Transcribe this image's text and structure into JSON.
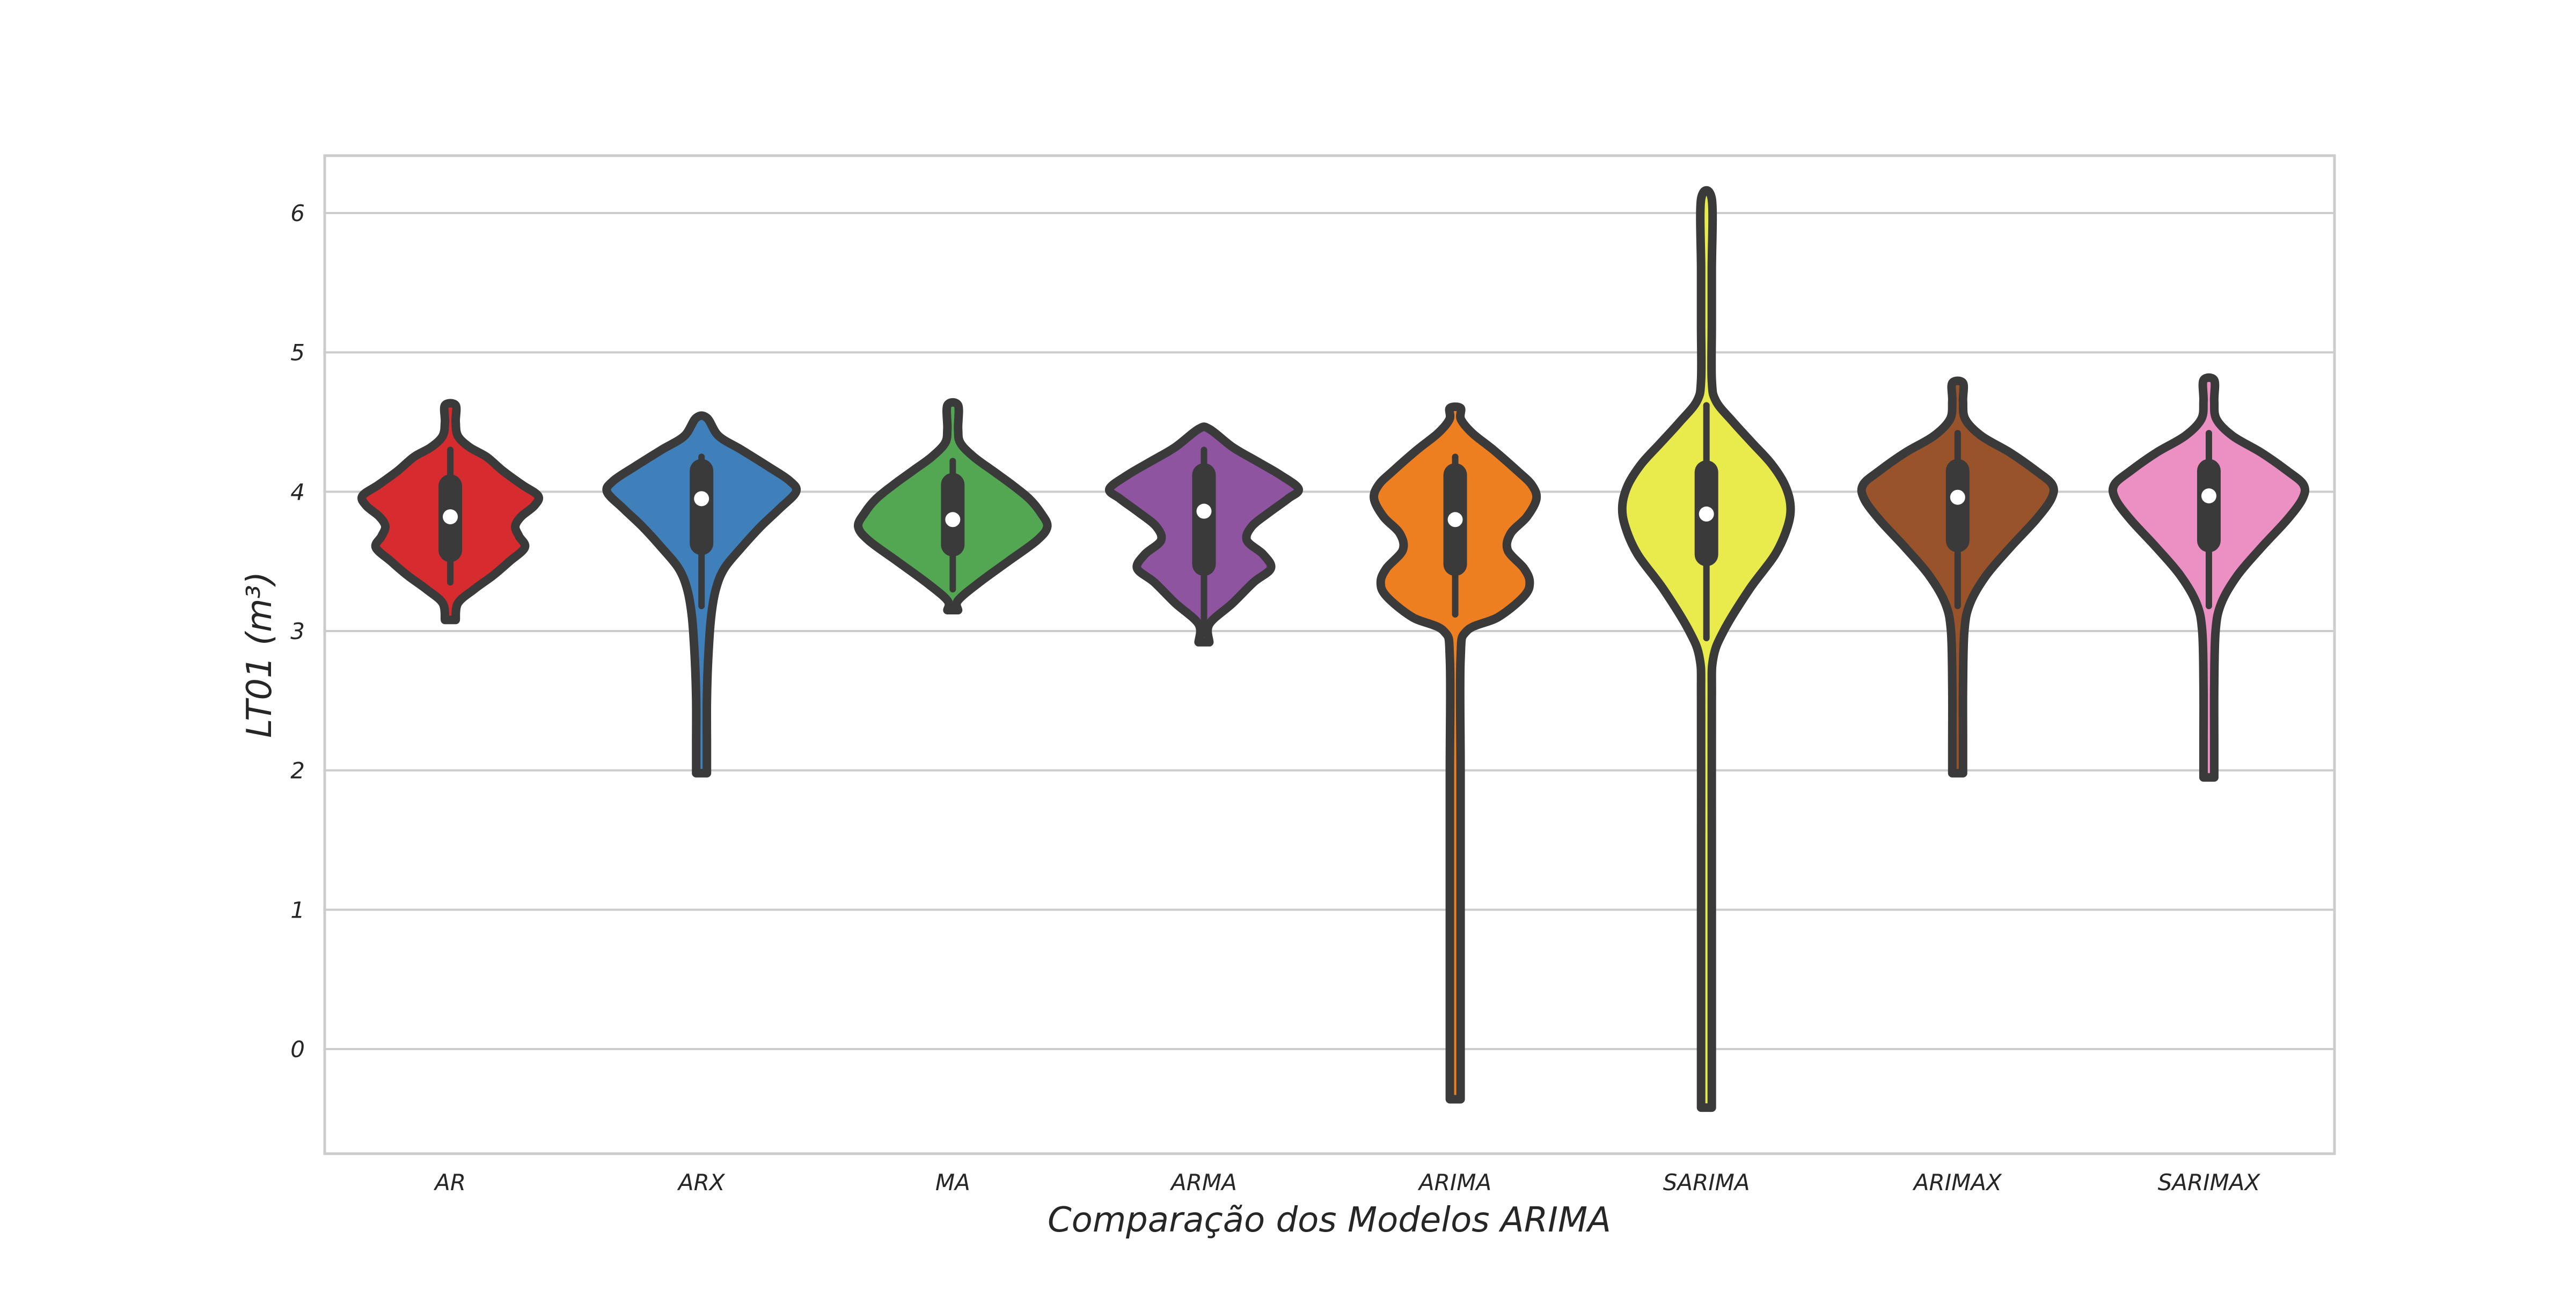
{
  "chart_data": {
    "type": "violin",
    "title": "",
    "xlabel": "Comparação dos Modelos ARIMA",
    "ylabel": "LT01 (m³)",
    "categories": [
      "AR",
      "ARX",
      "MA",
      "ARMA",
      "ARIMA",
      "SARIMA",
      "ARIMAX",
      "SARIMAX"
    ],
    "y_ticks": [
      "0",
      "1",
      "2",
      "3",
      "4",
      "5",
      "6"
    ],
    "ylim": [
      -0.75,
      6.42
    ],
    "grid": "horizontal",
    "colors": [
      "#d62b2f",
      "#3f7fba",
      "#54a752",
      "#8e54a0",
      "#ee7f21",
      "#e9ea4b",
      "#98532a",
      "#ec8fc3"
    ],
    "edge_color": "#3a3a3a",
    "series": [
      {
        "category": "AR",
        "min": 3.08,
        "max": 4.62,
        "q1": 3.58,
        "median": 3.82,
        "q3": 4.04,
        "whisker_low": 3.35,
        "whisker_high": 4.3,
        "density": [
          [
            3.08,
            0.02
          ],
          [
            3.2,
            0.08
          ],
          [
            3.3,
            0.25
          ],
          [
            3.4,
            0.45
          ],
          [
            3.5,
            0.62
          ],
          [
            3.6,
            0.78
          ],
          [
            3.68,
            0.72
          ],
          [
            3.75,
            0.68
          ],
          [
            3.82,
            0.74
          ],
          [
            3.9,
            0.88
          ],
          [
            3.97,
            0.92
          ],
          [
            4.05,
            0.75
          ],
          [
            4.15,
            0.55
          ],
          [
            4.25,
            0.38
          ],
          [
            4.32,
            0.2
          ],
          [
            4.4,
            0.08
          ],
          [
            4.5,
            0.04
          ],
          [
            4.62,
            0.0
          ]
        ]
      },
      {
        "category": "ARX",
        "min": 1.98,
        "max": 4.53,
        "q1": 3.63,
        "median": 3.95,
        "q3": 4.15,
        "whisker_low": 3.18,
        "whisker_high": 4.25,
        "density": [
          [
            1.98,
            0.0
          ],
          [
            2.2,
            0.03
          ],
          [
            2.5,
            0.05
          ],
          [
            2.8,
            0.07
          ],
          [
            3.1,
            0.1
          ],
          [
            3.3,
            0.15
          ],
          [
            3.45,
            0.24
          ],
          [
            3.6,
            0.42
          ],
          [
            3.75,
            0.62
          ],
          [
            3.88,
            0.82
          ],
          [
            4.0,
            0.99
          ],
          [
            4.08,
            0.92
          ],
          [
            4.18,
            0.7
          ],
          [
            4.3,
            0.42
          ],
          [
            4.4,
            0.18
          ],
          [
            4.53,
            0.0
          ]
        ]
      },
      {
        "category": "MA",
        "min": 3.15,
        "max": 4.62,
        "q1": 3.62,
        "median": 3.8,
        "q3": 4.05,
        "whisker_low": 3.3,
        "whisker_high": 4.22,
        "density": [
          [
            3.15,
            0.0
          ],
          [
            3.22,
            0.05
          ],
          [
            3.35,
            0.28
          ],
          [
            3.5,
            0.58
          ],
          [
            3.65,
            0.88
          ],
          [
            3.75,
            0.99
          ],
          [
            3.85,
            0.92
          ],
          [
            3.95,
            0.8
          ],
          [
            4.05,
            0.62
          ],
          [
            4.15,
            0.42
          ],
          [
            4.25,
            0.22
          ],
          [
            4.35,
            0.08
          ],
          [
            4.45,
            0.04
          ],
          [
            4.62,
            0.0
          ]
        ]
      },
      {
        "category": "ARMA",
        "min": 2.92,
        "max": 4.45,
        "q1": 3.48,
        "median": 3.86,
        "q3": 4.12,
        "whisker_low": 3.05,
        "whisker_high": 4.3,
        "density": [
          [
            2.92,
            0.0
          ],
          [
            3.05,
            0.05
          ],
          [
            3.2,
            0.3
          ],
          [
            3.35,
            0.52
          ],
          [
            3.45,
            0.7
          ],
          [
            3.55,
            0.62
          ],
          [
            3.65,
            0.45
          ],
          [
            3.75,
            0.5
          ],
          [
            3.85,
            0.68
          ],
          [
            3.95,
            0.88
          ],
          [
            4.02,
            0.99
          ],
          [
            4.12,
            0.8
          ],
          [
            4.22,
            0.55
          ],
          [
            4.32,
            0.3
          ],
          [
            4.45,
            0.0
          ]
        ]
      },
      {
        "category": "ARIMA",
        "min": -0.36,
        "max": 4.6,
        "q1": 3.48,
        "median": 3.8,
        "q3": 4.12,
        "whisker_low": 3.12,
        "whisker_high": 4.25,
        "density": [
          [
            -0.36,
            0.0
          ],
          [
            0.0,
            0.02
          ],
          [
            0.5,
            0.02
          ],
          [
            1.0,
            0.02
          ],
          [
            2.0,
            0.02
          ],
          [
            2.8,
            0.03
          ],
          [
            3.0,
            0.12
          ],
          [
            3.1,
            0.45
          ],
          [
            3.25,
            0.72
          ],
          [
            3.35,
            0.78
          ],
          [
            3.45,
            0.72
          ],
          [
            3.58,
            0.55
          ],
          [
            3.7,
            0.58
          ],
          [
            3.82,
            0.75
          ],
          [
            3.95,
            0.85
          ],
          [
            4.05,
            0.8
          ],
          [
            4.15,
            0.65
          ],
          [
            4.3,
            0.4
          ],
          [
            4.42,
            0.18
          ],
          [
            4.52,
            0.06
          ],
          [
            4.6,
            0.0
          ]
        ]
      },
      {
        "category": "SARIMA",
        "min": -0.42,
        "max": 6.1,
        "q1": 3.55,
        "median": 3.84,
        "q3": 4.14,
        "whisker_low": 2.95,
        "whisker_high": 4.62,
        "density": [
          [
            -0.42,
            0.0
          ],
          [
            0.0,
            0.02
          ],
          [
            0.5,
            0.02
          ],
          [
            1.5,
            0.02
          ],
          [
            2.5,
            0.03
          ],
          [
            2.8,
            0.07
          ],
          [
            3.0,
            0.18
          ],
          [
            3.3,
            0.45
          ],
          [
            3.55,
            0.72
          ],
          [
            3.75,
            0.85
          ],
          [
            3.9,
            0.88
          ],
          [
            4.05,
            0.82
          ],
          [
            4.2,
            0.68
          ],
          [
            4.35,
            0.48
          ],
          [
            4.5,
            0.28
          ],
          [
            4.65,
            0.1
          ],
          [
            4.8,
            0.05
          ],
          [
            5.2,
            0.03
          ],
          [
            5.6,
            0.03
          ],
          [
            6.1,
            0.0
          ]
        ]
      },
      {
        "category": "ARIMAX",
        "min": 1.98,
        "max": 4.78,
        "q1": 3.65,
        "median": 3.96,
        "q3": 4.15,
        "whisker_low": 3.18,
        "whisker_high": 4.42,
        "density": [
          [
            1.98,
            0.0
          ],
          [
            2.2,
            0.03
          ],
          [
            2.6,
            0.05
          ],
          [
            3.0,
            0.07
          ],
          [
            3.2,
            0.13
          ],
          [
            3.4,
            0.3
          ],
          [
            3.6,
            0.55
          ],
          [
            3.8,
            0.82
          ],
          [
            3.95,
            0.98
          ],
          [
            4.05,
            0.99
          ],
          [
            4.15,
            0.82
          ],
          [
            4.28,
            0.55
          ],
          [
            4.4,
            0.25
          ],
          [
            4.52,
            0.08
          ],
          [
            4.65,
            0.04
          ],
          [
            4.78,
            0.0
          ]
        ]
      },
      {
        "category": "SARIMAX",
        "min": 1.95,
        "max": 4.8,
        "q1": 3.65,
        "median": 3.97,
        "q3": 4.15,
        "whisker_low": 3.18,
        "whisker_high": 4.42,
        "density": [
          [
            1.95,
            0.0
          ],
          [
            2.2,
            0.03
          ],
          [
            2.6,
            0.05
          ],
          [
            3.0,
            0.07
          ],
          [
            3.2,
            0.13
          ],
          [
            3.4,
            0.3
          ],
          [
            3.6,
            0.55
          ],
          [
            3.8,
            0.82
          ],
          [
            3.95,
            0.98
          ],
          [
            4.05,
            0.99
          ],
          [
            4.15,
            0.82
          ],
          [
            4.28,
            0.55
          ],
          [
            4.4,
            0.25
          ],
          [
            4.52,
            0.08
          ],
          [
            4.65,
            0.04
          ],
          [
            4.8,
            0.0
          ]
        ]
      }
    ]
  }
}
